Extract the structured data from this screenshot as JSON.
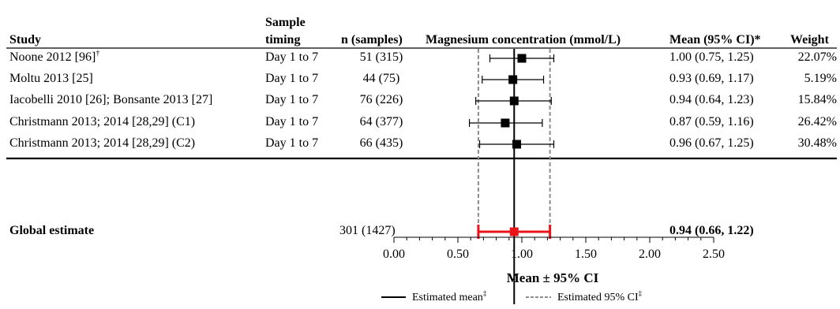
{
  "chart_data": {
    "type": "forest",
    "columns": {
      "study": "Study",
      "timing_line1": "Sample",
      "timing_line2": "timing",
      "n": "n (samples)",
      "plot": "Magnesium concentration (mmol/L)",
      "mean_ci": "Mean (95% CI)*",
      "weight": "Weight"
    },
    "rows": [
      {
        "study": "Noone 2012 [96]",
        "study_sup": "†",
        "timing": "Day 1 to 7",
        "n": "51 (315)",
        "mean": 1.0,
        "lo": 0.75,
        "hi": 1.25,
        "ci_text": "1.00 (0.75, 1.25)",
        "weight": "22.07%"
      },
      {
        "study": "Moltu 2013 [25]",
        "study_sup": "",
        "timing": "Day 1 to 7",
        "n": "44 (75)",
        "mean": 0.93,
        "lo": 0.69,
        "hi": 1.17,
        "ci_text": "0.93 (0.69, 1.17)",
        "weight": "5.19%"
      },
      {
        "study": "Iacobelli 2010 [26]; Bonsante 2013 [27]",
        "study_sup": "",
        "timing": "Day 1 to 7",
        "n": "76 (226)",
        "mean": 0.94,
        "lo": 0.64,
        "hi": 1.23,
        "ci_text": "0.94 (0.64, 1.23)",
        "weight": "15.84%"
      },
      {
        "study": "Christmann 2013; 2014 [28,29] (C1)",
        "study_sup": "",
        "timing": "Day 1 to 7",
        "n": "64 (377)",
        "mean": 0.87,
        "lo": 0.59,
        "hi": 1.16,
        "ci_text": "0.87 (0.59, 1.16)",
        "weight": "26.42%"
      },
      {
        "study": "Christmann 2013; 2014  [28,29] (C2)",
        "study_sup": "",
        "timing": "Day 1 to 7",
        "n": "66 (435)",
        "mean": 0.96,
        "lo": 0.67,
        "hi": 1.25,
        "ci_text": "0.96 (0.67, 1.25)",
        "weight": "30.48%"
      }
    ],
    "global": {
      "label": "Global estimate",
      "n": "301 (1427)",
      "mean": 0.94,
      "lo": 0.66,
      "hi": 1.22,
      "ci_text": "0.94 (0.66, 1.22)"
    },
    "xaxis": {
      "min": 0,
      "max": 2.5,
      "ticks": [
        0,
        0.5,
        1,
        1.5,
        2,
        2.5
      ],
      "tick_labels": [
        "0.00",
        "0.50",
        "1.00",
        "1.50",
        "2.00",
        "2.50"
      ],
      "minor_step": 0.1,
      "label": "Mean ± 95% CI"
    },
    "reference_lines": {
      "estimated_mean": 0.94,
      "ci_lower": 0.66,
      "ci_upper": 1.22
    },
    "legend": {
      "mean_label": "Estimated mean",
      "mean_sup": "‡",
      "ci_label": "Estimated 95% CI",
      "ci_sup": "‡",
      "position": "bottom-center"
    },
    "colors": {
      "study_marker": "#000000",
      "global_marker": "#e8141a",
      "ci_dashed": "#8c8c8c"
    }
  }
}
